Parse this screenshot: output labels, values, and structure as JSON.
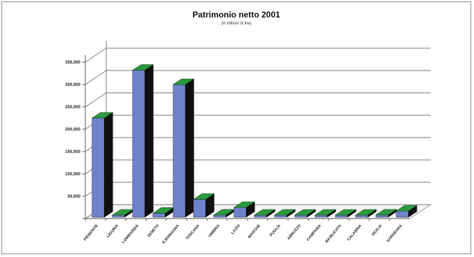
{
  "chart_data": {
    "type": "bar",
    "title": "Patrimonio netto 2001",
    "subtitle": "(in milioni di lire)",
    "categories": [
      "PIEMONTE",
      "LIGURIA",
      "LOMBARDIA",
      "VENETO",
      "E.ROMAGNA",
      "TOSCANA",
      "UMBRIA",
      "LAZIO",
      "MARCHE",
      "PUGLIA",
      "ABRUZZO",
      "CAMPANIA",
      "BASILICATA",
      "CALABRIA",
      "SICILIA",
      "SARDEGNA"
    ],
    "values": [
      225000,
      3000,
      332000,
      12000,
      300000,
      43000,
      8000,
      25000,
      2000,
      3000,
      6000,
      2000,
      0,
      0,
      8000,
      17000
    ],
    "yticks": [
      "50,000",
      "100,000",
      "150,000",
      "200,000",
      "250,000",
      "300,000",
      "350,000"
    ],
    "ylim": [
      0,
      350000
    ],
    "grid": true,
    "legend": "none",
    "colors": {
      "front": "#6f82cc",
      "side": "#101010",
      "top": "#2c9a3c",
      "gridline": "#7a7a7a",
      "floor": "#9a9a9a"
    }
  }
}
